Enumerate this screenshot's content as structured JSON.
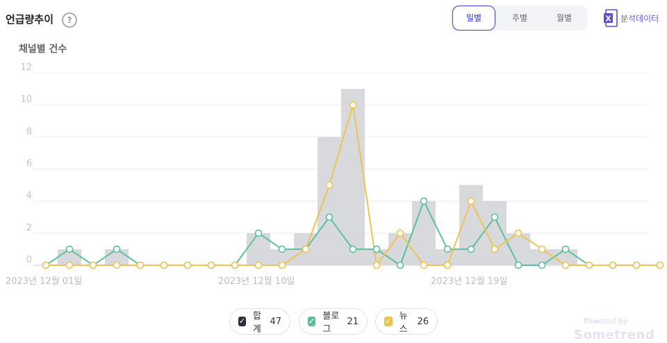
{
  "header": {
    "title": "언급량추이",
    "help_icon": "?"
  },
  "period_tabs": [
    {
      "label": "일별",
      "active": true
    },
    {
      "label": "주별",
      "active": false
    },
    {
      "label": "월별",
      "active": false
    }
  ],
  "export": {
    "label": "분석데이터",
    "icon": "excel-icon",
    "icon_text": "X"
  },
  "legend": [
    {
      "name": "합계",
      "count": "47",
      "color": "#2b2f3b"
    },
    {
      "name": "블로그",
      "count": "21",
      "color": "#5cbf9c"
    },
    {
      "name": "뉴스",
      "count": "26",
      "color": "#efc34f"
    }
  ],
  "footer": {
    "powered": "Powered by",
    "brand": "Sometrend"
  },
  "chart_data": {
    "type": "bar",
    "ylabel": "채널별 건수",
    "ylim": [
      0,
      12
    ],
    "y_ticks": [
      0,
      2,
      4,
      6,
      8,
      10,
      12
    ],
    "x": [
      "2023-12-01",
      "2023-12-02",
      "2023-12-03",
      "2023-12-04",
      "2023-12-05",
      "2023-12-06",
      "2023-12-07",
      "2023-12-08",
      "2023-12-09",
      "2023-12-10",
      "2023-12-11",
      "2023-12-12",
      "2023-12-13",
      "2023-12-14",
      "2023-12-15",
      "2023-12-16",
      "2023-12-17",
      "2023-12-18",
      "2023-12-19",
      "2023-12-20",
      "2023-12-21",
      "2023-12-22",
      "2023-12-23",
      "2023-12-24",
      "2023-12-25",
      "2023-12-26",
      "2023-12-27"
    ],
    "x_tick_labels": [
      {
        "index": 0,
        "label": "2023년 12월 01일"
      },
      {
        "index": 9,
        "label": "2023년 12월 10일"
      },
      {
        "index": 18,
        "label": "2023년 12월 19일"
      }
    ],
    "series": [
      {
        "name": "합계",
        "type": "bar",
        "color": "#d8d9dd",
        "values": [
          0,
          1,
          0,
          1,
          0,
          0,
          0,
          0,
          0,
          2,
          1,
          2,
          8,
          11,
          1,
          2,
          4,
          1,
          5,
          4,
          2,
          1,
          1,
          0,
          0,
          0,
          0
        ]
      },
      {
        "name": "블로그",
        "type": "line",
        "color": "#5cbf9c",
        "values": [
          0,
          1,
          0,
          1,
          0,
          0,
          0,
          0,
          0,
          2,
          1,
          1,
          3,
          1,
          1,
          0,
          4,
          1,
          1,
          3,
          0,
          0,
          1,
          0,
          0,
          0,
          0
        ]
      },
      {
        "name": "뉴스",
        "type": "line",
        "color": "#efc34f",
        "values": [
          0,
          0,
          0,
          0,
          0,
          0,
          0,
          0,
          0,
          0,
          0,
          1,
          5,
          10,
          0,
          2,
          0,
          0,
          4,
          1,
          2,
          1,
          0,
          0,
          0,
          0,
          0
        ]
      }
    ]
  }
}
